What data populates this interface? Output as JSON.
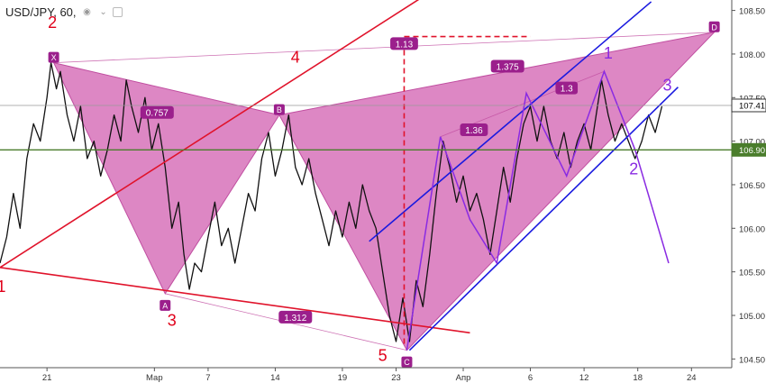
{
  "header": {
    "symbol": "USD/JPY, 60,",
    "icons": [
      "eye-icon",
      "chevron-down-icon",
      "settings-box-icon"
    ]
  },
  "chart_data": {
    "type": "line",
    "title": "USD/JPY, 60,",
    "x_axis": {
      "ticks": [
        {
          "x": 0,
          "label": "21"
        },
        {
          "x": 8,
          "label": "Мар"
        },
        {
          "x": 12,
          "label": "7"
        },
        {
          "x": 17,
          "label": "14"
        },
        {
          "x": 22,
          "label": "19"
        },
        {
          "x": 26,
          "label": "23"
        },
        {
          "x": 31,
          "label": "Апр"
        },
        {
          "x": 36,
          "label": "6"
        },
        {
          "x": 40,
          "label": "12"
        },
        {
          "x": 44,
          "label": "18"
        },
        {
          "x": 48,
          "label": "24"
        }
      ],
      "xlim": [
        -3.5,
        51
      ]
    },
    "y_axis": {
      "ticks": [
        104.5,
        105.0,
        105.5,
        106.0,
        106.5,
        107.0,
        107.5,
        108.0,
        108.5
      ],
      "tick_labels": [
        "104.50",
        "105.00",
        "105.50",
        "106.00",
        "106.50",
        "107.00",
        "107.50",
        "108.00",
        "108.50"
      ],
      "ylim": [
        104.4,
        108.62
      ],
      "position": "right"
    },
    "price_series": [
      [
        -3.5,
        105.6
      ],
      [
        -3.0,
        105.9
      ],
      [
        -2.5,
        106.4
      ],
      [
        -2.0,
        106.0
      ],
      [
        -1.5,
        106.8
      ],
      [
        -1.0,
        107.2
      ],
      [
        -0.5,
        107.0
      ],
      [
        0.0,
        107.5
      ],
      [
        0.3,
        107.9
      ],
      [
        0.7,
        107.6
      ],
      [
        1.0,
        107.8
      ],
      [
        1.5,
        107.3
      ],
      [
        2.0,
        107.0
      ],
      [
        2.5,
        107.4
      ],
      [
        3.0,
        106.8
      ],
      [
        3.5,
        107.0
      ],
      [
        4.0,
        106.6
      ],
      [
        4.5,
        106.9
      ],
      [
        5.0,
        107.3
      ],
      [
        5.5,
        107.0
      ],
      [
        5.9,
        107.7
      ],
      [
        6.3,
        107.4
      ],
      [
        6.8,
        107.1
      ],
      [
        7.3,
        107.5
      ],
      [
        7.8,
        106.9
      ],
      [
        8.3,
        107.2
      ],
      [
        8.8,
        106.7
      ],
      [
        9.3,
        106.0
      ],
      [
        9.8,
        106.3
      ],
      [
        10.2,
        105.7
      ],
      [
        10.6,
        105.3
      ],
      [
        11.0,
        105.6
      ],
      [
        11.5,
        105.5
      ],
      [
        12.0,
        105.9
      ],
      [
        12.5,
        106.3
      ],
      [
        13.0,
        105.8
      ],
      [
        13.5,
        106.0
      ],
      [
        14.0,
        105.6
      ],
      [
        14.5,
        106.0
      ],
      [
        15.0,
        106.4
      ],
      [
        15.5,
        106.2
      ],
      [
        16.0,
        106.8
      ],
      [
        16.5,
        107.1
      ],
      [
        17.0,
        106.6
      ],
      [
        17.5,
        106.9
      ],
      [
        18.0,
        107.3
      ],
      [
        18.5,
        106.7
      ],
      [
        19.0,
        106.5
      ],
      [
        19.5,
        106.8
      ],
      [
        20.0,
        106.4
      ],
      [
        20.5,
        106.1
      ],
      [
        21.0,
        105.8
      ],
      [
        21.5,
        106.2
      ],
      [
        22.0,
        105.9
      ],
      [
        22.5,
        106.3
      ],
      [
        23.0,
        106.0
      ],
      [
        23.5,
        106.5
      ],
      [
        24.0,
        106.2
      ],
      [
        24.5,
        106.0
      ],
      [
        25.0,
        105.5
      ],
      [
        25.5,
        105.0
      ],
      [
        26.0,
        104.7
      ],
      [
        26.5,
        105.2
      ],
      [
        27.0,
        104.7
      ],
      [
        27.5,
        105.4
      ],
      [
        28.0,
        105.1
      ],
      [
        28.5,
        105.7
      ],
      [
        29.0,
        106.4
      ],
      [
        29.5,
        107.0
      ],
      [
        30.0,
        106.7
      ],
      [
        30.5,
        106.3
      ],
      [
        31.0,
        106.6
      ],
      [
        31.5,
        106.2
      ],
      [
        32.0,
        106.4
      ],
      [
        32.5,
        106.1
      ],
      [
        33.0,
        105.7
      ],
      [
        33.5,
        106.2
      ],
      [
        34.0,
        106.7
      ],
      [
        34.5,
        106.3
      ],
      [
        35.0,
        106.8
      ],
      [
        35.5,
        107.2
      ],
      [
        36.0,
        107.4
      ],
      [
        36.5,
        107.0
      ],
      [
        37.0,
        107.4
      ],
      [
        37.5,
        107.0
      ],
      [
        38.0,
        106.8
      ],
      [
        38.5,
        107.1
      ],
      [
        39.0,
        106.7
      ],
      [
        39.5,
        107.0
      ],
      [
        40.0,
        107.2
      ],
      [
        40.5,
        106.9
      ],
      [
        41.0,
        107.4
      ],
      [
        41.3,
        107.7
      ],
      [
        41.8,
        107.3
      ],
      [
        42.3,
        107.0
      ],
      [
        42.8,
        107.2
      ],
      [
        43.3,
        107.0
      ],
      [
        43.8,
        106.8
      ],
      [
        44.3,
        107.0
      ],
      [
        44.8,
        107.3
      ],
      [
        45.3,
        107.1
      ],
      [
        45.8,
        107.4
      ]
    ],
    "price_marks": [
      {
        "value": 107.41,
        "label": "107.41",
        "color": "#ffffff",
        "text_color": "#000000",
        "line": "#999999"
      },
      {
        "value": 106.9,
        "label": "106.90",
        "color": "#4a7d2c",
        "text_color": "#ffffff",
        "line": "#4a7d2c"
      }
    ],
    "triangles": [
      {
        "points": [
          [
            0.5,
            107.9
          ],
          [
            8.8,
            105.25
          ],
          [
            17.3,
            107.3
          ]
        ],
        "fill": "#d25fb0",
        "opacity": 0.75
      },
      {
        "points": [
          [
            17.3,
            107.3
          ],
          [
            26.8,
            104.6
          ],
          [
            49.7,
            108.25
          ]
        ],
        "fill": "#d25fb0",
        "opacity": 0.75
      }
    ],
    "pattern_points": [
      {
        "label": "X",
        "x": 0.5,
        "y": 107.9
      },
      {
        "label": "A",
        "x": 8.8,
        "y": 105.25
      },
      {
        "label": "B",
        "x": 17.3,
        "y": 107.3
      },
      {
        "label": "C",
        "x": 26.8,
        "y": 104.6
      },
      {
        "label": "D",
        "x": 49.7,
        "y": 108.25
      }
    ],
    "ratio_labels": [
      {
        "label": "0.757",
        "x": 8.2,
        "y": 107.33
      },
      {
        "label": "1.312",
        "x": 18.5,
        "y": 104.98
      },
      {
        "label": "1.13",
        "x": 26.6,
        "y": 108.12
      },
      {
        "label": "1.375",
        "x": 34.3,
        "y": 107.86
      },
      {
        "label": "1.36",
        "x": 31.8,
        "y": 107.13
      },
      {
        "label": "1.3",
        "x": 38.7,
        "y": 107.61
      }
    ],
    "wave_labels": [
      {
        "label": "1",
        "x": -3.4,
        "y": 105.27,
        "color": "#e0001a"
      },
      {
        "label": "2",
        "x": 0.4,
        "y": 108.3,
        "color": "#e0001a"
      },
      {
        "label": "3",
        "x": 9.3,
        "y": 104.88,
        "color": "#e0001a"
      },
      {
        "label": "4",
        "x": 18.5,
        "y": 107.9,
        "color": "#e0001a"
      },
      {
        "label": "5",
        "x": 25.0,
        "y": 104.48,
        "color": "#e0001a"
      },
      {
        "label": "1",
        "x": 41.8,
        "y": 107.95,
        "color": "#8a2be2"
      },
      {
        "label": "2",
        "x": 43.7,
        "y": 106.62,
        "color": "#8a2be2"
      },
      {
        "label": "3",
        "x": 46.2,
        "y": 107.58,
        "color": "#8a2be2"
      }
    ],
    "red_lines": [
      [
        [
          -3.5,
          105.55
        ],
        [
          33.5,
          109.2
        ]
      ],
      [
        [
          -3.5,
          105.55
        ],
        [
          31.5,
          104.8
        ]
      ]
    ],
    "blue_lines": [
      [
        [
          24.0,
          105.85
        ],
        [
          45.0,
          108.6
        ]
      ],
      [
        [
          27.0,
          104.6
        ],
        [
          47.0,
          107.62
        ]
      ]
    ],
    "purple_zigzag": [
      [
        26.8,
        104.6
      ],
      [
        29.3,
        107.05
      ],
      [
        31.5,
        106.1
      ],
      [
        33.5,
        105.6
      ],
      [
        35.7,
        107.55
      ],
      [
        38.7,
        106.6
      ],
      [
        41.5,
        107.8
      ],
      [
        43.8,
        106.9
      ],
      [
        46.3,
        105.6
      ]
    ],
    "thin_lines": [
      [
        [
          0.5,
          107.9
        ],
        [
          49.7,
          108.25
        ]
      ],
      [
        [
          8.8,
          105.25
        ],
        [
          26.8,
          104.6
        ]
      ],
      [
        [
          29.3,
          107.05
        ],
        [
          41.5,
          107.8
        ]
      ]
    ],
    "dashed": [
      {
        "points": [
          [
            26.6,
            108.15
          ],
          [
            26.6,
            104.65
          ]
        ],
        "orientation": "vertical"
      },
      {
        "points": [
          [
            26.6,
            108.2
          ],
          [
            36.0,
            108.2
          ]
        ],
        "orientation": "horizontal"
      }
    ]
  }
}
